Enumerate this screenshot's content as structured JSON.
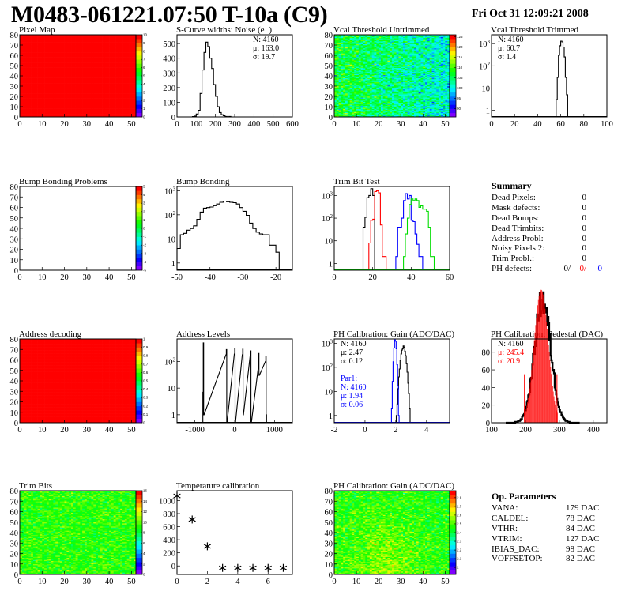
{
  "header": {
    "title": "M0483-061221.07:50 T-10a (C9)",
    "date": "Fri Oct 31 12:09:21 2008"
  },
  "summary": {
    "title": "Summary",
    "items": [
      {
        "label": "Dead Pixels:",
        "value": "0"
      },
      {
        "label": "Mask defects:",
        "value": "0"
      },
      {
        "label": "Dead Bumps:",
        "value": "0"
      },
      {
        "label": "Dead Trimbits:",
        "value": "0"
      },
      {
        "label": "Address Probl:",
        "value": "0"
      },
      {
        "label": "Noisy Pixels 2:",
        "value": "0"
      },
      {
        "label": "Trim Probl.:",
        "value": "0"
      }
    ],
    "ph_defects": {
      "label": "PH defects:",
      "v1": "0/",
      "v2": "0/",
      "v3": "0",
      "c2": "#ff0000",
      "c3": "#0000ff"
    }
  },
  "op_parameters": {
    "title": "Op. Parameters",
    "items": [
      {
        "label": "VANA:",
        "value": "179 DAC"
      },
      {
        "label": "CALDEL:",
        "value": "78 DAC"
      },
      {
        "label": "VTHR:",
        "value": "84 DAC"
      },
      {
        "label": "VTRIM:",
        "value": "127 DAC"
      },
      {
        "label": "IBIAS_DAC:",
        "value": "98 DAC"
      },
      {
        "label": "VOFFSETOP:",
        "value": "82 DAC"
      }
    ]
  },
  "chart_data": [
    {
      "type": "heatmap",
      "title": "Pixel Map",
      "xlim": [
        0,
        52
      ],
      "ylim": [
        0,
        80
      ],
      "zlim": [
        0,
        10
      ],
      "xticks": [
        0,
        10,
        20,
        30,
        40,
        50
      ],
      "yticks": [
        0,
        10,
        20,
        30,
        40,
        50,
        60,
        70,
        80
      ],
      "zticks": [
        0,
        1,
        2,
        3,
        4,
        5,
        6,
        7,
        8,
        9,
        10
      ],
      "fill": "uniform",
      "z_value": 10
    },
    {
      "type": "bar",
      "title": "S-Curve widths: Noise (e⁻)",
      "xlim": [
        0,
        600
      ],
      "ylim": [
        0,
        560
      ],
      "xticks": [
        0,
        100,
        200,
        300,
        400,
        500,
        600
      ],
      "yticks": [
        0,
        100,
        200,
        300,
        400,
        500
      ],
      "bin_width": 10,
      "series": [
        {
          "color": "#000000",
          "x": [
            80,
            90,
            100,
            110,
            120,
            130,
            140,
            150,
            160,
            170,
            180,
            190,
            200,
            210,
            220,
            230,
            240,
            250,
            260,
            270,
            280
          ],
          "values": [
            2,
            6,
            20,
            45,
            160,
            320,
            440,
            510,
            480,
            400,
            330,
            220,
            140,
            70,
            30,
            15,
            8,
            3,
            0,
            3,
            0
          ]
        }
      ],
      "stats": [
        {
          "text": "N: 4160",
          "color": "#000000"
        },
        {
          "text": "μ: 163.0",
          "color": "#000000"
        },
        {
          "text": "σ: 19.7",
          "color": "#000000"
        }
      ],
      "stats_pos": "top-right"
    },
    {
      "type": "heatmap",
      "title": "Vcal Threshold Untrimmed",
      "xlim": [
        0,
        52
      ],
      "ylim": [
        0,
        80
      ],
      "zlim": [
        86,
        126
      ],
      "xticks": [
        0,
        10,
        20,
        30,
        40,
        50
      ],
      "yticks": [
        0,
        10,
        20,
        30,
        40,
        50,
        60,
        70,
        80
      ],
      "zticks": [
        90,
        95,
        100,
        105,
        110,
        115,
        120,
        125
      ],
      "fill": "noise",
      "z_mean": 104,
      "z_spread": 5,
      "z_gradient_x": -6
    },
    {
      "type": "bar",
      "title": "Vcal Threshold Trimmed",
      "xlim": [
        0,
        100
      ],
      "ylim": [
        0.5,
        2500
      ],
      "ylog": true,
      "xticks": [
        0,
        20,
        40,
        60,
        80,
        100
      ],
      "yticks": [
        1,
        10,
        100,
        1000
      ],
      "bin_width": 1,
      "series": [
        {
          "color": "#000000",
          "x": [
            55,
            56,
            57,
            58,
            59,
            60,
            61,
            62,
            63,
            64,
            65,
            66
          ],
          "values": [
            0,
            3,
            30,
            300,
            800,
            1300,
            1200,
            700,
            250,
            30,
            5,
            0
          ]
        }
      ],
      "stats": [
        {
          "text": "N: 4160",
          "color": "#000000"
        },
        {
          "text": "μ: 60.7",
          "color": "#000000"
        },
        {
          "text": "σ:  1.4",
          "color": "#000000"
        }
      ],
      "stats_pos": "top-left"
    },
    {
      "type": "heatmap",
      "title": "Bump Bonding Problems",
      "xlim": [
        0,
        52
      ],
      "ylim": [
        0,
        80
      ],
      "zlim": [
        -5,
        5
      ],
      "xticks": [
        0,
        10,
        20,
        30,
        40,
        50
      ],
      "yticks": [
        0,
        10,
        20,
        30,
        40,
        50,
        60,
        70,
        80
      ],
      "zticks": [
        -5,
        -4,
        -3,
        -2,
        -1,
        0,
        1,
        2,
        3,
        4,
        5
      ],
      "fill": "empty"
    },
    {
      "type": "bar",
      "title": "Bump Bonding",
      "xlim": [
        -50,
        -15
      ],
      "ylim": [
        0.5,
        1500
      ],
      "ylog": true,
      "xticks": [
        -50,
        -40,
        -30,
        -20
      ],
      "yticks": [
        1,
        10,
        100,
        1000
      ],
      "bin_width": 1,
      "series": [
        {
          "color": "#000000",
          "x": [
            -50,
            -49,
            -48,
            -47,
            -46,
            -45,
            -44,
            -43,
            -42,
            -41,
            -40,
            -39,
            -38,
            -37,
            -36,
            -35,
            -34,
            -33,
            -32,
            -31,
            -30,
            -29,
            -28,
            -27,
            -26,
            -25,
            -24,
            -23,
            -22,
            -21,
            -20,
            -19
          ],
          "values": [
            4,
            15,
            17,
            23,
            27,
            35,
            65,
            130,
            190,
            200,
            210,
            240,
            280,
            330,
            370,
            350,
            330,
            320,
            280,
            200,
            140,
            95,
            45,
            27,
            19,
            16,
            15,
            15,
            5.5,
            5.5,
            2.8,
            0
          ]
        }
      ]
    },
    {
      "type": "bar",
      "title": "Trim Bit Test",
      "xlim": [
        0,
        60
      ],
      "ylim": [
        0.5,
        2500
      ],
      "ylog": true,
      "xticks": [
        0,
        20,
        40,
        60
      ],
      "yticks": [
        1,
        10,
        100,
        1000
      ],
      "bin_width": 1,
      "series": [
        {
          "color": "#000000",
          "x": [
            14,
            15,
            16,
            17,
            18,
            19,
            20,
            21
          ],
          "values": [
            0,
            40,
            110,
            800,
            1000,
            2000,
            1000,
            0
          ]
        },
        {
          "color": "#ff0000",
          "x": [
            17,
            18,
            19,
            20,
            21,
            22,
            23,
            24,
            25,
            26,
            27
          ],
          "values": [
            0,
            8,
            80,
            90,
            1500,
            1600,
            1300,
            50,
            2,
            2,
            0
          ]
        },
        {
          "color": "#0000ff",
          "x": [
            31,
            32,
            33,
            34,
            35,
            36,
            37,
            38,
            39,
            40,
            41,
            42,
            43,
            44,
            45,
            46
          ],
          "values": [
            0,
            2,
            40,
            40,
            100,
            600,
            1200,
            700,
            1000,
            80,
            70,
            20,
            7,
            2,
            2,
            0
          ]
        },
        {
          "color": "#00dd00",
          "x": [
            35,
            36,
            37,
            38,
            39,
            40,
            41,
            42,
            43,
            44,
            45,
            46,
            47,
            48,
            49,
            50,
            51,
            52
          ],
          "values": [
            0,
            2,
            20,
            100,
            400,
            700,
            600,
            700,
            600,
            300,
            350,
            250,
            250,
            200,
            40,
            2,
            2,
            0
          ]
        }
      ]
    },
    {
      "type": "heatmap",
      "title": "Address decoding",
      "xlim": [
        0,
        52
      ],
      "ylim": [
        0,
        80
      ],
      "zlim": [
        0,
        1
      ],
      "xticks": [
        0,
        10,
        20,
        30,
        40,
        50
      ],
      "yticks": [
        0,
        10,
        20,
        30,
        40,
        50,
        60,
        70,
        80
      ],
      "zticks": [
        0,
        0.1,
        0.2,
        0.3,
        0.4,
        0.5,
        0.6,
        0.7,
        0.8,
        0.9,
        1
      ],
      "fill": "uniform",
      "z_value": 1
    },
    {
      "type": "bar",
      "title": "Address Levels",
      "xlim": [
        -1450,
        1450
      ],
      "ylim": [
        0.5,
        700
      ],
      "ylog": true,
      "xticks": [
        -1000,
        0,
        1000
      ],
      "yticks": [
        1,
        10,
        100
      ],
      "bin_width": 10,
      "series": [
        {
          "color": "#000000",
          "x": [
            -800,
            -790,
            -780,
            -220,
            -210,
            -200,
            -10,
            0,
            10,
            190,
            200,
            210,
            390,
            400,
            410,
            590,
            600,
            610,
            770,
            780,
            790
          ],
          "values": [
            7,
            500,
            1,
            180,
            280,
            0,
            190,
            300,
            0,
            180,
            290,
            1,
            170,
            250,
            0,
            55,
            200,
            30,
            100,
            150,
            1
          ]
        }
      ]
    },
    {
      "type": "bar",
      "title": "PH Calibration: Gain (ADC/DAC)",
      "xlim": [
        -2,
        5.5
      ],
      "ylim": [
        0.5,
        1500
      ],
      "ylog": true,
      "xticks": [
        -2,
        0,
        2,
        4
      ],
      "yticks": [
        1,
        10,
        100,
        1000
      ],
      "bin_width": 0.05,
      "series": [
        {
          "color": "#000000",
          "gauss": {
            "N": 4160,
            "mean": 2.47,
            "sigma": 0.12
          }
        },
        {
          "color": "#0000ff",
          "gauss": {
            "N": 4160,
            "mean": 1.94,
            "sigma": 0.06
          }
        }
      ],
      "stats": [
        {
          "text": "N: 4160",
          "color": "#000000"
        },
        {
          "text": "μ: 2.47",
          "color": "#000000"
        },
        {
          "text": "σ: 0.12",
          "color": "#000000"
        },
        {
          "text": "",
          "color": "#000000"
        },
        {
          "text": "Par1:",
          "color": "#0000ff"
        },
        {
          "text": "N: 4160",
          "color": "#0000ff"
        },
        {
          "text": "μ: 1.94",
          "color": "#0000ff"
        },
        {
          "text": "σ: 0.06",
          "color": "#0000ff"
        }
      ],
      "stats_pos": "top-left"
    },
    {
      "type": "bar",
      "title": "PH Calibration: Pedestal (DAC)",
      "xlim": [
        100,
        440
      ],
      "ylim": [
        0,
        95
      ],
      "xticks": [
        100,
        200,
        300,
        400
      ],
      "yticks": [
        0,
        20,
        40,
        60,
        80
      ],
      "bin_width": 2,
      "series": [
        {
          "color": "#000000",
          "gauss": {
            "N": 4160,
            "mean": 250,
            "sigma": 24
          }
        }
      ],
      "fit": {
        "color": "#ff0000",
        "mean": 245.4,
        "sigma": 20.9,
        "lines": [
          197,
          293
        ]
      },
      "stats": [
        {
          "text": "N: 4160",
          "color": "#000000"
        },
        {
          "text": "μ: 245.4",
          "color": "#ff0000"
        },
        {
          "text": "σ: 20.9",
          "color": "#ff0000"
        }
      ],
      "stats_pos": "top-left"
    },
    {
      "type": "heatmap",
      "title": "Trim Bits",
      "xlim": [
        0,
        52
      ],
      "ylim": [
        0,
        80
      ],
      "zlim": [
        0,
        16
      ],
      "xticks": [
        0,
        10,
        20,
        30,
        40,
        50
      ],
      "yticks": [
        0,
        10,
        20,
        30,
        40,
        50,
        60,
        70,
        80
      ],
      "zticks": [
        0,
        2,
        4,
        6,
        8,
        10,
        12,
        14,
        16
      ],
      "fill": "noise",
      "z_mean": 9.3,
      "z_spread": 1.3,
      "z_gradient_x": 0
    },
    {
      "type": "scatter",
      "title": "Temperature calibration",
      "xlim": [
        0,
        7.6
      ],
      "ylim": [
        -130,
        1150
      ],
      "xticks": [
        0,
        2,
        4,
        6
      ],
      "yticks": [
        0,
        200,
        400,
        600,
        800,
        1000
      ],
      "marker": "asterisk",
      "x": [
        0,
        1,
        2,
        3,
        4,
        5,
        6,
        7
      ],
      "y": [
        1070,
        710,
        300,
        -30,
        -30,
        -30,
        -30,
        -30
      ]
    },
    {
      "type": "heatmap",
      "title": "PH Calibration: Gain (ADC/DAC)",
      "xlim": [
        0,
        52
      ],
      "ylim": [
        0,
        80
      ],
      "zlim": [
        1.92,
        2.88
      ],
      "xticks": [
        0,
        10,
        20,
        30,
        40,
        50
      ],
      "yticks": [
        0,
        10,
        20,
        30,
        40,
        50,
        60,
        70,
        80
      ],
      "zticks": [
        2,
        2.1,
        2.2,
        2.3,
        2.4,
        2.5,
        2.6,
        2.7,
        2.8
      ],
      "fill": "noise",
      "z_mean": 2.5,
      "z_spread": 0.09,
      "z_gradient_center": 0.12
    }
  ]
}
